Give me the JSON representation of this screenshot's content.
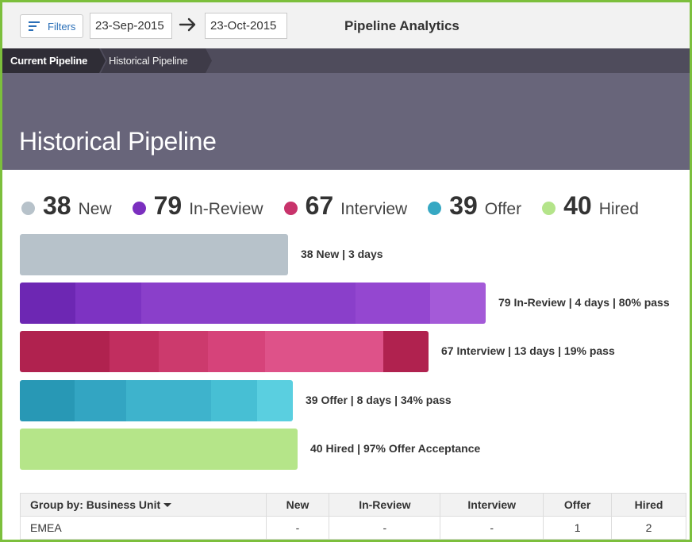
{
  "toolbar": {
    "filters_label": "Filters",
    "filters_icon": "filter-lines-icon",
    "date_from": "23-Sep-2015",
    "date_to": "23-Oct-2015",
    "arrow_icon": "arrow-right-icon",
    "title": "Pipeline Analytics"
  },
  "breadcrumb": {
    "items": [
      "Current Pipeline",
      "Historical Pipeline"
    ]
  },
  "hero": {
    "title": "Historical Pipeline"
  },
  "legend": [
    {
      "count": "38",
      "label": "New",
      "color": "#b7c2ca"
    },
    {
      "count": "79",
      "label": "In-Review",
      "color": "#7b2fbf"
    },
    {
      "count": "67",
      "label": "Interview",
      "color": "#c8336b"
    },
    {
      "count": "39",
      "label": "Offer",
      "color": "#36a8c3"
    },
    {
      "count": "40",
      "label": "Hired",
      "color": "#b4e48a"
    }
  ],
  "stages": [
    {
      "label": "38 New | 3 days",
      "segments": [
        "#b7c2ca"
      ]
    },
    {
      "label": "79 In-Review | 4 days | 80% pass",
      "segments": [
        "#6d27b3",
        "#7d33c2",
        "#8a3fca",
        "#9447d0",
        "#a45ad8"
      ]
    },
    {
      "label": "67 Interview | 13 days | 19% pass",
      "segments": [
        "#b0224f",
        "#c12e5f",
        "#cc3a6d",
        "#d6437a",
        "#de5289",
        "#b0224f"
      ]
    },
    {
      "label": "39 Offer | 8 days | 34% pass",
      "segments": [
        "#2898b5",
        "#33a5c2",
        "#3eb3cc",
        "#47bfd4",
        "#5acfe0"
      ]
    },
    {
      "label": "40 Hired | 97% Offer Acceptance",
      "segments": [
        "#b5e589"
      ]
    }
  ],
  "table": {
    "group_by_label": "Group by: Business Unit",
    "columns": [
      "New",
      "In-Review",
      "Interview",
      "Offer",
      "Hired"
    ],
    "rows": [
      {
        "unit": "EMEA",
        "values": [
          "-",
          "-",
          "-",
          "1",
          "2"
        ]
      }
    ]
  }
}
